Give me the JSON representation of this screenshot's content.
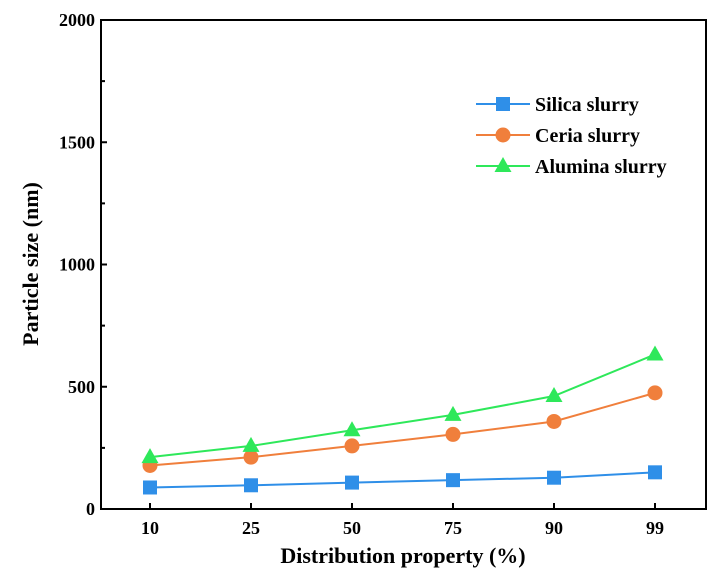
{
  "chart_data": {
    "type": "line",
    "xlabel": "Distribution property (%)",
    "ylabel": "Particle size (nm)",
    "categories": [
      "10",
      "25",
      "50",
      "75",
      "90",
      "99"
    ],
    "ylim": [
      0,
      2000
    ],
    "yticks": [
      "0",
      "500",
      "1000",
      "1500",
      "2000"
    ],
    "grid": false,
    "legend_position": "top-right",
    "series": [
      {
        "name": "Silica slurry",
        "marker": "square",
        "color": "#2f8fe8",
        "values": [
          88,
          97,
          108,
          118,
          128,
          150
        ]
      },
      {
        "name": "Ceria slurry",
        "marker": "circle",
        "color": "#f07f3c",
        "values": [
          178,
          212,
          258,
          305,
          358,
          475
        ]
      },
      {
        "name": "Alumina slurry",
        "marker": "triangle",
        "color": "#2ee85a",
        "values": [
          212,
          258,
          322,
          385,
          462,
          632
        ]
      }
    ]
  }
}
